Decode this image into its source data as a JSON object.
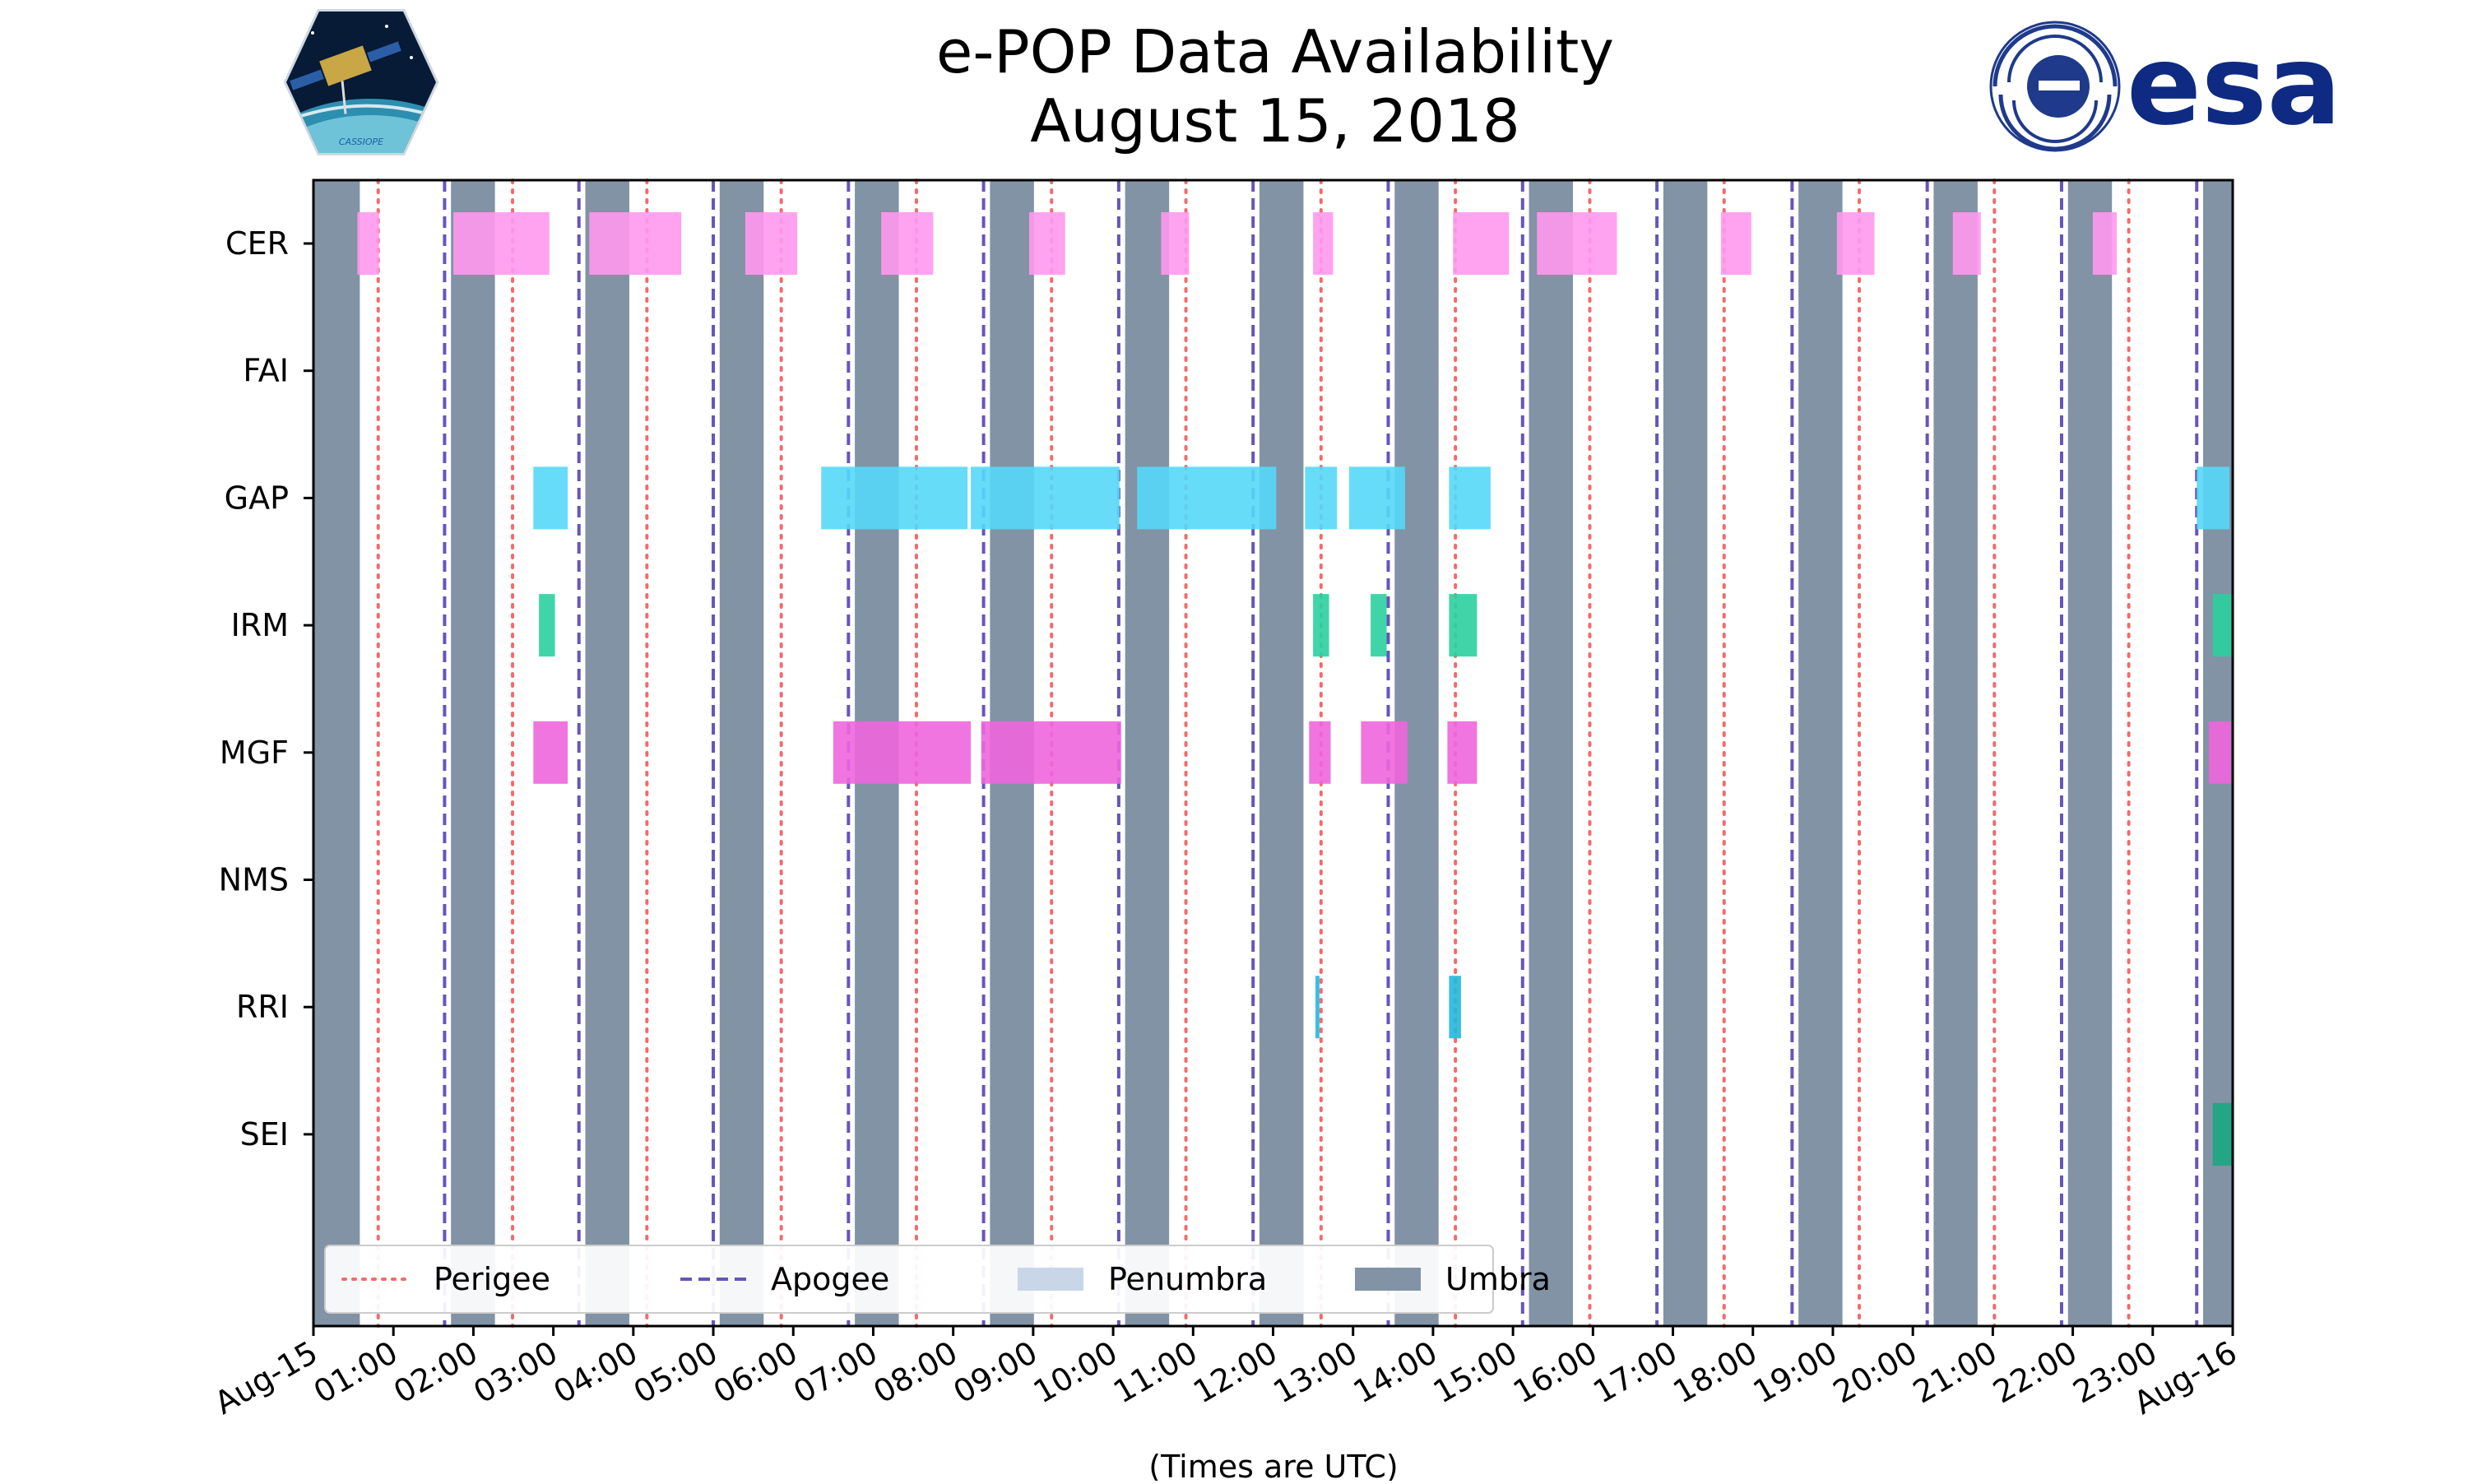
{
  "chart_data": {
    "type": "timeline",
    "title": "e-POP Data Availability",
    "subtitle": "August 15, 2018",
    "xlabel": "(Times are UTC)",
    "x_unit": "hours since 2018-08-15 00:00 UTC",
    "xlim": [
      0,
      24
    ],
    "x_tick_labels": [
      "Aug-15",
      "01:00",
      "02:00",
      "03:00",
      "04:00",
      "05:00",
      "06:00",
      "07:00",
      "08:00",
      "09:00",
      "10:00",
      "11:00",
      "12:00",
      "13:00",
      "14:00",
      "15:00",
      "16:00",
      "17:00",
      "18:00",
      "19:00",
      "20:00",
      "21:00",
      "22:00",
      "23:00",
      "Aug-16"
    ],
    "categories": [
      "CER",
      "FAI",
      "GAP",
      "IRM",
      "MGF",
      "NMS",
      "RRI",
      "SEI"
    ],
    "umbra": [
      [
        0.0,
        0.58
      ],
      [
        1.72,
        2.27
      ],
      [
        3.4,
        3.95
      ],
      [
        5.08,
        5.63
      ],
      [
        6.77,
        7.32
      ],
      [
        8.46,
        9.01
      ],
      [
        10.15,
        10.7
      ],
      [
        11.83,
        12.38
      ],
      [
        13.52,
        14.07
      ],
      [
        15.2,
        15.75
      ],
      [
        16.88,
        17.43
      ],
      [
        18.57,
        19.12
      ],
      [
        20.26,
        20.81
      ],
      [
        21.94,
        22.49
      ],
      [
        23.63,
        24.0
      ]
    ],
    "penumbra": [],
    "apogee": [
      1.64,
      3.32,
      5.0,
      6.69,
      8.38,
      10.07,
      11.75,
      13.44,
      15.12,
      16.8,
      18.49,
      20.18,
      21.86,
      23.55
    ],
    "perigee": [
      0.81,
      2.49,
      4.17,
      5.85,
      7.54,
      9.23,
      10.91,
      12.6,
      14.28,
      15.96,
      17.64,
      19.33,
      21.02,
      22.7
    ],
    "series": [
      {
        "name": "CER",
        "color": "#ff99ee",
        "intervals": [
          [
            0.55,
            0.82
          ],
          [
            1.75,
            2.95
          ],
          [
            3.45,
            4.6
          ],
          [
            5.4,
            6.05
          ],
          [
            7.1,
            7.75
          ],
          [
            8.95,
            9.4
          ],
          [
            10.6,
            10.95
          ],
          [
            12.5,
            12.75
          ],
          [
            14.25,
            14.95
          ],
          [
            15.3,
            16.3
          ],
          [
            17.6,
            17.98
          ],
          [
            19.05,
            19.52
          ],
          [
            20.5,
            20.85
          ],
          [
            22.25,
            22.55
          ]
        ]
      },
      {
        "name": "FAI",
        "color": "#5fa8ff",
        "intervals": []
      },
      {
        "name": "GAP",
        "color": "#55d8f8",
        "intervals": [
          [
            2.75,
            3.18
          ],
          [
            6.35,
            8.18
          ],
          [
            8.22,
            10.08
          ],
          [
            10.3,
            12.04
          ],
          [
            12.4,
            12.8
          ],
          [
            12.95,
            13.65
          ],
          [
            14.2,
            14.72
          ],
          [
            23.55,
            23.96
          ]
        ]
      },
      {
        "name": "IRM",
        "color": "#2bd0a0",
        "intervals": [
          [
            2.82,
            3.02
          ],
          [
            12.5,
            12.7
          ],
          [
            13.22,
            13.42
          ],
          [
            14.2,
            14.55
          ],
          [
            23.75,
            24.0
          ]
        ]
      },
      {
        "name": "MGF",
        "color": "#ee66dd",
        "intervals": [
          [
            2.75,
            3.18
          ],
          [
            6.5,
            8.22
          ],
          [
            8.35,
            10.1
          ],
          [
            12.45,
            12.72
          ],
          [
            13.1,
            13.68
          ],
          [
            14.18,
            14.55
          ],
          [
            23.7,
            23.98
          ]
        ]
      },
      {
        "name": "NMS",
        "color": "#ffaa55",
        "intervals": []
      },
      {
        "name": "RRI",
        "color": "#22b8dd",
        "intervals": [
          [
            12.53,
            12.58
          ],
          [
            14.2,
            14.35
          ]
        ]
      },
      {
        "name": "SEI",
        "color": "#1aa77f",
        "intervals": [
          [
            23.75,
            24.0
          ]
        ]
      }
    ],
    "legend": {
      "position": "lower-left",
      "entries": [
        {
          "label": "Perigee",
          "style": "dotted-line",
          "color": "#f46a6a"
        },
        {
          "label": "Apogee",
          "style": "dashed-line",
          "color": "#6655bb"
        },
        {
          "label": "Penumbra",
          "style": "patch",
          "color": "#c8d6e8"
        },
        {
          "label": "Umbra",
          "style": "patch",
          "color": "#8193a4"
        }
      ]
    },
    "colors": {
      "umbra": "#8193a4",
      "apogee": "#6655bb",
      "perigee": "#f46a6a"
    }
  },
  "logos": {
    "left_logo_text": "CASSIOPE",
    "right_logo_text": "esa"
  }
}
